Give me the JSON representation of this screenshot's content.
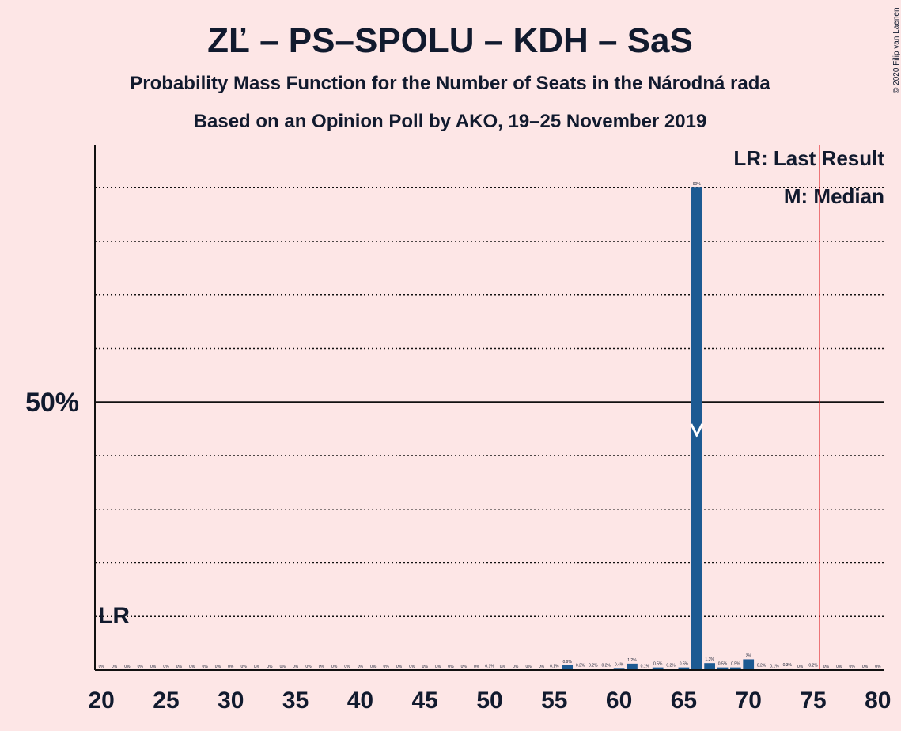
{
  "chart_data": {
    "type": "bar",
    "title": "ZĽ – PS–SPOLU – KDH – SaS",
    "subtitle": "Probability Mass Function for the Number of Seats in the Národná rada",
    "subtitle2": "Based on an Opinion Poll by AKO, 19–25 November 2019",
    "copyright": "© 2020 Filip van Laenen",
    "legend": [
      "LR: Last Result",
      "M: Median"
    ],
    "last_result_label": "LR",
    "color": "#1d5a92",
    "median": 66,
    "majority": 75.5,
    "categories": [
      20,
      21,
      22,
      23,
      24,
      25,
      26,
      27,
      28,
      29,
      30,
      31,
      32,
      33,
      34,
      35,
      36,
      37,
      38,
      39,
      40,
      41,
      42,
      43,
      44,
      45,
      46,
      47,
      48,
      49,
      50,
      51,
      52,
      53,
      54,
      55,
      56,
      57,
      58,
      59,
      60,
      61,
      62,
      63,
      64,
      65,
      66,
      67,
      68,
      69,
      70,
      71,
      72,
      73,
      74,
      75,
      76,
      77,
      78,
      79,
      80
    ],
    "values": [
      0,
      0,
      0,
      0,
      0,
      0,
      0,
      0,
      0,
      0,
      0,
      0,
      0,
      0,
      0,
      0,
      0,
      0,
      0,
      0,
      0,
      0,
      0,
      0,
      0,
      0,
      0,
      0,
      0,
      0,
      0.1,
      0,
      0,
      0,
      0,
      0.1,
      0.9,
      0.2,
      0.2,
      0.2,
      0.4,
      1.2,
      0.1,
      0.5,
      0.2,
      0.5,
      90,
      1.3,
      0.5,
      0.5,
      2,
      0.2,
      0.1,
      0.3,
      0,
      0.2,
      0,
      0,
      0,
      0,
      0
    ],
    "value_labels": [
      "0%",
      "0%",
      "0%",
      "0%",
      "0%",
      "0%",
      "0%",
      "0%",
      "0%",
      "0%",
      "0%",
      "0%",
      "0%",
      "0%",
      "0%",
      "0%",
      "0%",
      "0%",
      "0%",
      "0%",
      "0%",
      "0%",
      "0%",
      "0%",
      "0%",
      "0%",
      "0%",
      "0%",
      "0%",
      "0%",
      "0.1%",
      "0%",
      "0%",
      "0%",
      "0%",
      "0.1%",
      "0.9%",
      "0.2%",
      "0.2%",
      "0.2%",
      "0.4%",
      "1.2%",
      "0.1%",
      "0.5%",
      "0.2%",
      "0.5%",
      "90%",
      "1.3%",
      "0.5%",
      "0.5%",
      "2%",
      "0.2%",
      "0.1%",
      "0.3%",
      "0%",
      "0.2%",
      "0%",
      "0%",
      "0%",
      "0%",
      "0%"
    ],
    "xlim": [
      19.5,
      80.5
    ],
    "xticks": [
      20,
      25,
      30,
      35,
      40,
      45,
      50,
      55,
      60,
      65,
      70,
      75,
      80
    ],
    "ylim": [
      0,
      98
    ],
    "yticks": [
      {
        "value": 50,
        "label": "50%"
      }
    ],
    "minor_grid": [
      10,
      20,
      30,
      40,
      60,
      70,
      80,
      90
    ]
  }
}
